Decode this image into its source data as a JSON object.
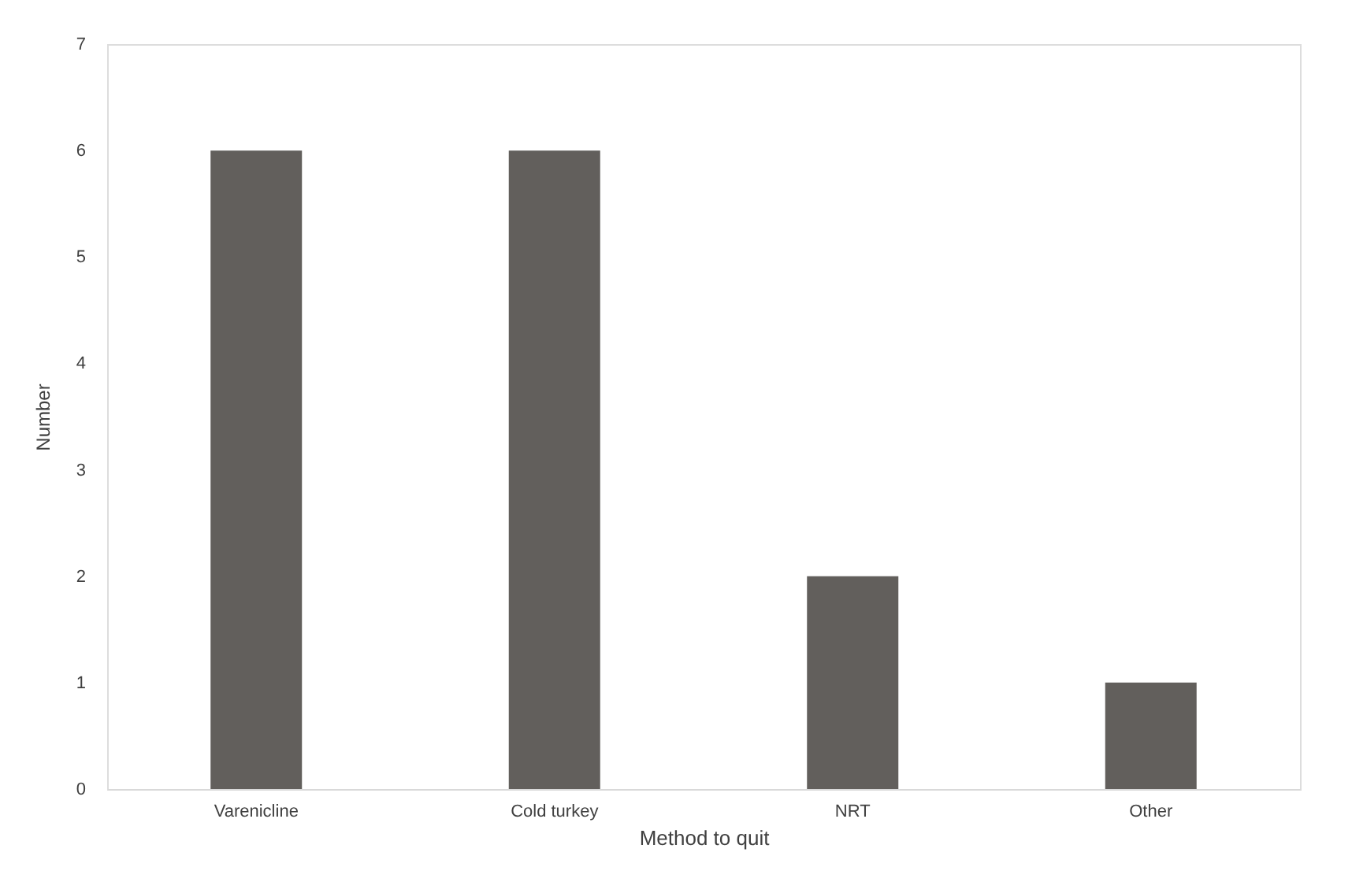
{
  "chart_data": {
    "type": "bar",
    "xlabel": "Method to quit",
    "ylabel": "Number",
    "categories": [
      "Varenicline",
      "Cold turkey",
      "NRT",
      "Other"
    ],
    "values": [
      6,
      6,
      2,
      1
    ],
    "color": "#625f5c",
    "ylim": [
      0,
      7
    ],
    "yticks": [
      0,
      1,
      2,
      3,
      4,
      5,
      6,
      7
    ],
    "grid": false
  }
}
